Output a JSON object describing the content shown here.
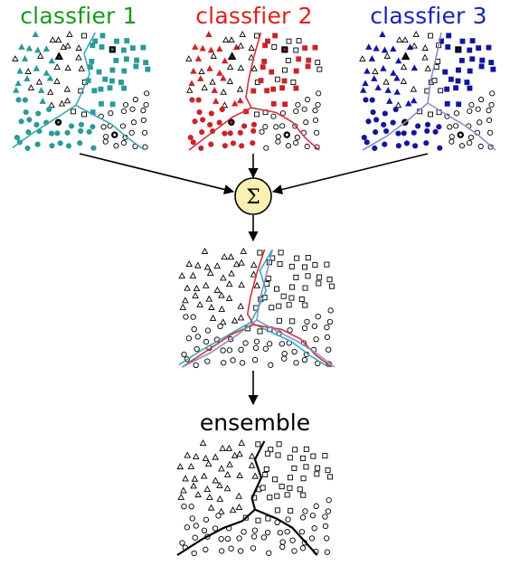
{
  "titles": {
    "classifier_1": {
      "text": "classfier 1",
      "color": "#1a9a1a"
    },
    "classifier_2": {
      "text": "classfier 2",
      "color": "#e0201c"
    },
    "classifier_3": {
      "text": "classfier 3",
      "color": "#1a22b8"
    }
  },
  "combiner": {
    "symbol": "Σ",
    "fill": "#fbf0b4"
  },
  "ensemble_label": "ensemble",
  "colors": {
    "classifier_1": "#2a9a96",
    "classifier_2": "#c8242a",
    "classifier_3": "#1414a0",
    "boundary_1": "#3aa8b4",
    "boundary_2": "#d6303a",
    "boundary_3": "#8890c8",
    "ensemble_boundary": "#000000"
  },
  "classes": [
    "triangle",
    "square",
    "circle"
  ]
}
